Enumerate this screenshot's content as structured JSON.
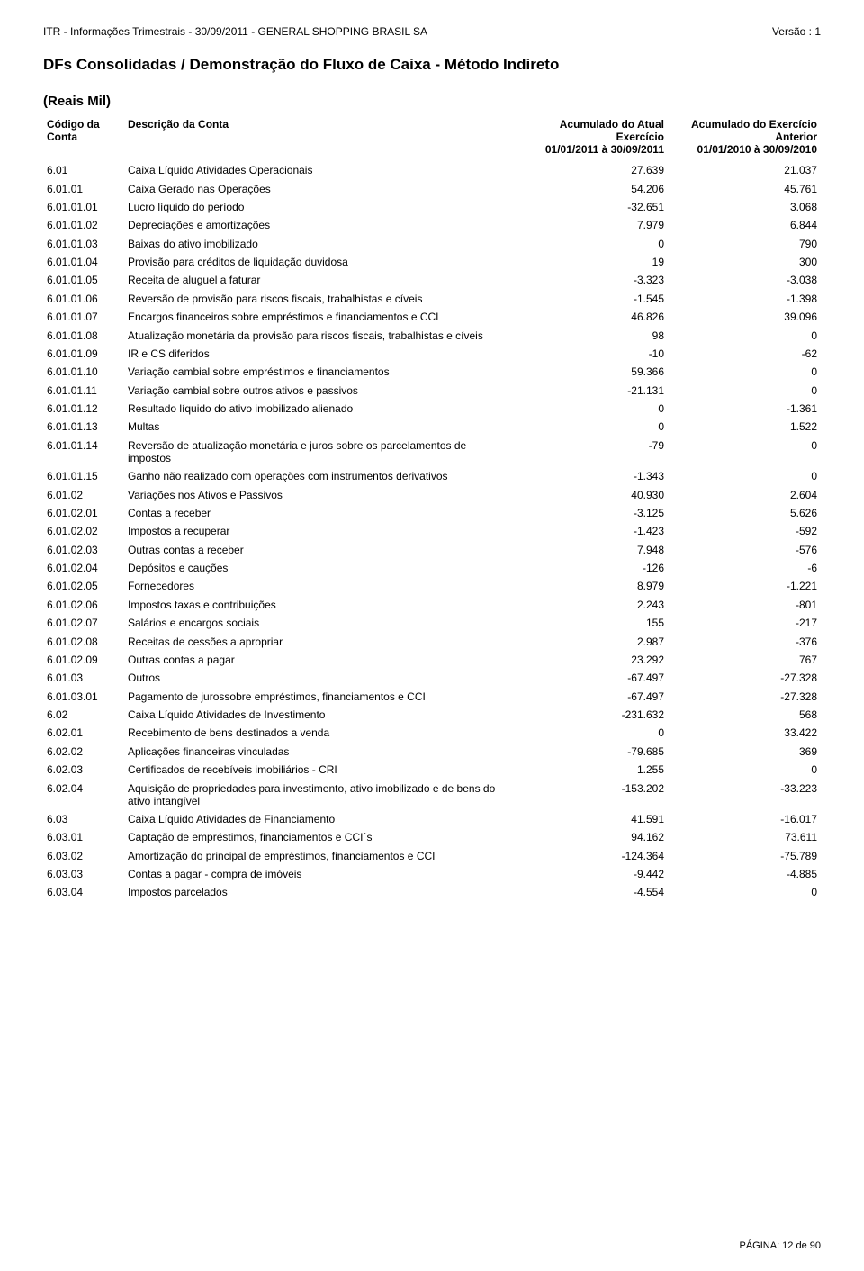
{
  "header": {
    "left": "ITR - Informações Trimestrais - 30/09/2011 - GENERAL SHOPPING BRASIL SA",
    "right": "Versão : 1"
  },
  "title": "DFs Consolidadas / Demonstração do Fluxo de Caixa  - Método Indireto",
  "subtitle": "(Reais Mil)",
  "columns": {
    "code_hdr_a": "Código da",
    "code_hdr_b": "Conta",
    "desc_hdr": "Descrição da Conta",
    "curr_hdr_a": "Acumulado do Atual",
    "curr_hdr_b": "Exercício",
    "curr_hdr_c": "01/01/2011 à 30/09/2011",
    "prev_hdr_a": "Acumulado do Exercício",
    "prev_hdr_b": "Anterior",
    "prev_hdr_c": "01/01/2010 à 30/09/2010"
  },
  "rows": [
    {
      "code": "6.01",
      "desc": "Caixa Líquido Atividades Operacionais",
      "v1": "27.639",
      "v2": "21.037"
    },
    {
      "code": "6.01.01",
      "desc": "Caixa Gerado nas Operações",
      "v1": "54.206",
      "v2": "45.761"
    },
    {
      "code": "6.01.01.01",
      "desc": "Lucro líquido do período",
      "v1": "-32.651",
      "v2": "3.068"
    },
    {
      "code": "6.01.01.02",
      "desc": "Depreciações e amortizações",
      "v1": "7.979",
      "v2": "6.844"
    },
    {
      "code": "6.01.01.03",
      "desc": "Baixas do ativo imobilizado",
      "v1": "0",
      "v2": "790"
    },
    {
      "code": "6.01.01.04",
      "desc": "Provisão para créditos de liquidação duvidosa",
      "v1": "19",
      "v2": "300"
    },
    {
      "code": "6.01.01.05",
      "desc": "Receita de aluguel a faturar",
      "v1": "-3.323",
      "v2": "-3.038"
    },
    {
      "code": "6.01.01.06",
      "desc": "Reversão de provisão para riscos fiscais, trabalhistas e cíveis",
      "v1": "-1.545",
      "v2": "-1.398"
    },
    {
      "code": "6.01.01.07",
      "desc": "Encargos financeiros sobre empréstimos e financiamentos e CCI",
      "v1": "46.826",
      "v2": "39.096"
    },
    {
      "code": "6.01.01.08",
      "desc": "Atualização monetária da provisão para riscos fiscais, trabalhistas e cíveis",
      "v1": "98",
      "v2": "0"
    },
    {
      "code": "6.01.01.09",
      "desc": "IR e CS diferidos",
      "v1": "-10",
      "v2": "-62"
    },
    {
      "code": "6.01.01.10",
      "desc": "Variação cambial sobre empréstimos e financiamentos",
      "v1": "59.366",
      "v2": "0"
    },
    {
      "code": "6.01.01.11",
      "desc": "Variação cambial sobre outros ativos e passivos",
      "v1": "-21.131",
      "v2": "0"
    },
    {
      "code": "6.01.01.12",
      "desc": "Resultado líquido do ativo imobilizado alienado",
      "v1": "0",
      "v2": "-1.361"
    },
    {
      "code": "6.01.01.13",
      "desc": "Multas",
      "v1": "0",
      "v2": "1.522"
    },
    {
      "code": "6.01.01.14",
      "desc": "Reversão de atualização monetária e juros sobre os parcelamentos de impostos",
      "v1": "-79",
      "v2": "0"
    },
    {
      "code": "6.01.01.15",
      "desc": "Ganho não realizado com operações com instrumentos derivativos",
      "v1": "-1.343",
      "v2": "0"
    },
    {
      "code": "6.01.02",
      "desc": "Variações nos Ativos e Passivos",
      "v1": "40.930",
      "v2": "2.604"
    },
    {
      "code": "6.01.02.01",
      "desc": "Contas a receber",
      "v1": "-3.125",
      "v2": "5.626"
    },
    {
      "code": "6.01.02.02",
      "desc": "Impostos a recuperar",
      "v1": "-1.423",
      "v2": "-592"
    },
    {
      "code": "6.01.02.03",
      "desc": "Outras contas a receber",
      "v1": "7.948",
      "v2": "-576"
    },
    {
      "code": "6.01.02.04",
      "desc": "Depósitos e cauções",
      "v1": "-126",
      "v2": "-6"
    },
    {
      "code": "6.01.02.05",
      "desc": "Fornecedores",
      "v1": "8.979",
      "v2": "-1.221"
    },
    {
      "code": "6.01.02.06",
      "desc": "Impostos taxas e contribuições",
      "v1": "2.243",
      "v2": "-801"
    },
    {
      "code": "6.01.02.07",
      "desc": "Salários e encargos sociais",
      "v1": "155",
      "v2": "-217"
    },
    {
      "code": "6.01.02.08",
      "desc": "Receitas de cessões a apropriar",
      "v1": "2.987",
      "v2": "-376"
    },
    {
      "code": "6.01.02.09",
      "desc": "Outras contas a pagar",
      "v1": "23.292",
      "v2": "767"
    },
    {
      "code": "6.01.03",
      "desc": "Outros",
      "v1": "-67.497",
      "v2": "-27.328"
    },
    {
      "code": "6.01.03.01",
      "desc": "Pagamento de jurossobre empréstimos, financiamentos e CCI",
      "v1": "-67.497",
      "v2": "-27.328"
    },
    {
      "code": "6.02",
      "desc": "Caixa Líquido Atividades de Investimento",
      "v1": "-231.632",
      "v2": "568"
    },
    {
      "code": "6.02.01",
      "desc": "Recebimento de bens destinados a venda",
      "v1": "0",
      "v2": "33.422"
    },
    {
      "code": "6.02.02",
      "desc": "Aplicações financeiras vinculadas",
      "v1": "-79.685",
      "v2": "369"
    },
    {
      "code": "6.02.03",
      "desc": "Certificados de recebíveis imobiliários - CRI",
      "v1": "1.255",
      "v2": "0"
    },
    {
      "code": "6.02.04",
      "desc": "Aquisição de propriedades para investimento, ativo imobilizado e de bens do ativo intangível",
      "v1": "-153.202",
      "v2": "-33.223"
    },
    {
      "code": "6.03",
      "desc": "Caixa Líquido Atividades de Financiamento",
      "v1": "41.591",
      "v2": "-16.017"
    },
    {
      "code": "6.03.01",
      "desc": "Captação de empréstimos, financiamentos e CCI´s",
      "v1": "94.162",
      "v2": "73.611"
    },
    {
      "code": "6.03.02",
      "desc": "Amortização do principal de empréstimos, financiamentos e CCI",
      "v1": "-124.364",
      "v2": "-75.789"
    },
    {
      "code": "6.03.03",
      "desc": "Contas a pagar - compra de imóveis",
      "v1": "-9.442",
      "v2": "-4.885"
    },
    {
      "code": "6.03.04",
      "desc": "Impostos parcelados",
      "v1": "-4.554",
      "v2": "0"
    }
  ],
  "footer": "PÁGINA: 12 de 90"
}
